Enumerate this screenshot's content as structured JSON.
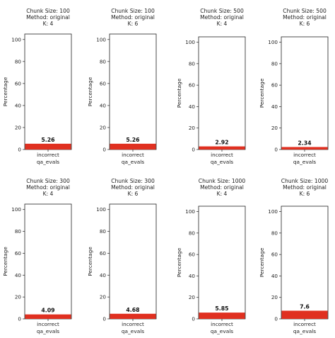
{
  "chart_data": [
    {
      "type": "bar",
      "title": [
        "Chunk Size: 100",
        "Method: original",
        "K: 4"
      ],
      "categories": [
        "incorrect"
      ],
      "values": [
        5.26
      ],
      "data_labels": [
        "5.26"
      ],
      "xlabel": "qa_evals",
      "ylabel": "Percentage",
      "ylim": [
        0,
        105
      ],
      "yticks": [
        0,
        20,
        40,
        60,
        80,
        100
      ],
      "bar_color": "#e03020"
    },
    {
      "type": "bar",
      "title": [
        "Chunk Size: 100",
        "Method: original",
        "K: 6"
      ],
      "categories": [
        "incorrect"
      ],
      "values": [
        5.26
      ],
      "data_labels": [
        "5.26"
      ],
      "xlabel": "qa_evals",
      "ylabel": "Percentage",
      "ylim": [
        0,
        105
      ],
      "yticks": [
        0,
        20,
        40,
        60,
        80,
        100
      ],
      "bar_color": "#e03020"
    },
    {
      "type": "bar",
      "title": [
        "Chunk Size: 500",
        "Method: original",
        "K: 4"
      ],
      "categories": [
        "incorrect"
      ],
      "values": [
        2.92
      ],
      "data_labels": [
        "2.92"
      ],
      "xlabel": "qa_evals",
      "ylabel": "Percentage",
      "ylim": [
        0,
        105
      ],
      "yticks": [
        0,
        20,
        40,
        60,
        80,
        100
      ],
      "bar_color": "#e03020"
    },
    {
      "type": "bar",
      "title": [
        "Chunk Size: 500",
        "Method: original",
        "K: 6"
      ],
      "categories": [
        "incorrect"
      ],
      "values": [
        2.34
      ],
      "data_labels": [
        "2.34"
      ],
      "xlabel": "qa_evals",
      "ylabel": "Percentage",
      "ylim": [
        0,
        105
      ],
      "yticks": [
        0,
        20,
        40,
        60,
        80,
        100
      ],
      "bar_color": "#e03020"
    },
    {
      "type": "bar",
      "title": [
        "Chunk Size: 300",
        "Method: original",
        "K: 4"
      ],
      "categories": [
        "incorrect"
      ],
      "values": [
        4.09
      ],
      "data_labels": [
        "4.09"
      ],
      "xlabel": "qa_evals",
      "ylabel": "Percentage",
      "ylim": [
        0,
        105
      ],
      "yticks": [
        0,
        20,
        40,
        60,
        80,
        100
      ],
      "bar_color": "#e03020"
    },
    {
      "type": "bar",
      "title": [
        "Chunk Size: 300",
        "Method: original",
        "K: 6"
      ],
      "categories": [
        "incorrect"
      ],
      "values": [
        4.68
      ],
      "data_labels": [
        "4.68"
      ],
      "xlabel": "qa_evals",
      "ylabel": "Percentage",
      "ylim": [
        0,
        105
      ],
      "yticks": [
        0,
        20,
        40,
        60,
        80,
        100
      ],
      "bar_color": "#e03020"
    },
    {
      "type": "bar",
      "title": [
        "Chunk Size: 1000",
        "Method: original",
        "K: 4"
      ],
      "categories": [
        "incorrect"
      ],
      "values": [
        5.85
      ],
      "data_labels": [
        "5.85"
      ],
      "xlabel": "qa_evals",
      "ylabel": "Percentage",
      "ylim": [
        0,
        105
      ],
      "yticks": [
        0,
        20,
        40,
        60,
        80,
        100
      ],
      "bar_color": "#e03020"
    },
    {
      "type": "bar",
      "title": [
        "Chunk Size: 1000",
        "Method: original",
        "K: 6"
      ],
      "categories": [
        "incorrect"
      ],
      "values": [
        7.6
      ],
      "data_labels": [
        "7.6"
      ],
      "xlabel": "qa_evals",
      "ylabel": "Percentage",
      "ylim": [
        0,
        105
      ],
      "yticks": [
        0,
        20,
        40,
        60,
        80,
        100
      ],
      "bar_color": "#e03020"
    }
  ]
}
